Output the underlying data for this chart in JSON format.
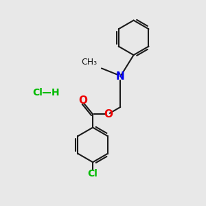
{
  "bg_color": "#e8e8e8",
  "bond_color": "#1a1a1a",
  "N_color": "#0000ee",
  "O_color": "#ee0000",
  "Cl_color": "#00bb00",
  "lw": 1.5,
  "fs": 10,
  "fig_size": [
    3.0,
    3.0
  ],
  "dpi": 100,
  "xlim": [
    0,
    10
  ],
  "ylim": [
    0,
    10
  ],
  "HCl_x": 1.8,
  "HCl_y": 5.5
}
